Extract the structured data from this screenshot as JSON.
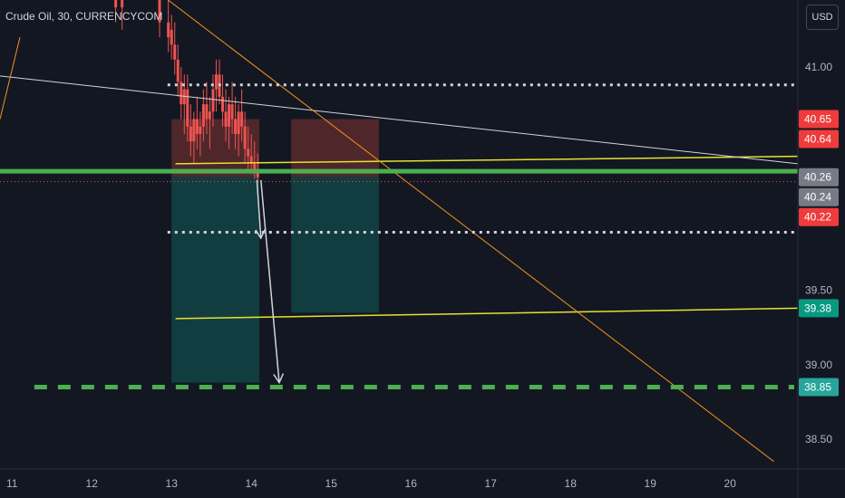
{
  "header": {
    "symbol_label": "Crude Oil, 30, CURRENCYCOM",
    "currency_button": "USD"
  },
  "colors": {
    "background": "#131722",
    "grid": "#1e222d",
    "up_candle": "#ef5350",
    "down_candle": "#ef5350",
    "yellow_line": "#e6e22e",
    "orange_line": "#f7931a",
    "white_line": "#d1d4dc",
    "green_support": "#4caf50",
    "red_price": "#ef5350",
    "risk_zone": "#5b2a2d",
    "reward_zone": "#134445",
    "tag_red": "#ef3b3b",
    "tag_gray": "#787b86",
    "tag_teal": "#089981",
    "tag_green": "#26a69a"
  },
  "chart_data": {
    "type": "candlestick",
    "title": "Crude Oil, 30, CURRENCYCOM",
    "x_ticks": [
      {
        "x": 11,
        "label": "11"
      },
      {
        "x": 12,
        "label": "12"
      },
      {
        "x": 13,
        "label": "13"
      },
      {
        "x": 14,
        "label": "14"
      },
      {
        "x": 15,
        "label": "15"
      },
      {
        "x": 16,
        "label": "16"
      },
      {
        "x": 17,
        "label": "17"
      },
      {
        "x": 18,
        "label": "18"
      },
      {
        "x": 19,
        "label": "19"
      },
      {
        "x": 20,
        "label": "20"
      }
    ],
    "y_ticks": [
      {
        "y": 41.0,
        "label": "41.00"
      },
      {
        "y": 39.5,
        "label": "39.50"
      },
      {
        "y": 39.0,
        "label": "39.00"
      },
      {
        "y": 38.5,
        "label": "38.50"
      }
    ],
    "xlim": [
      10.85,
      20.85
    ],
    "ylim": [
      38.3,
      41.45
    ],
    "grid": false,
    "candles": [
      {
        "x": 12.3,
        "o": 41.5,
        "h": 41.6,
        "l": 41.3,
        "c": 41.4
      },
      {
        "x": 12.38,
        "o": 41.4,
        "h": 41.55,
        "l": 41.25,
        "c": 41.45
      },
      {
        "x": 12.85,
        "o": 41.45,
        "h": 41.5,
        "l": 41.2,
        "c": 41.3
      },
      {
        "x": 12.96,
        "o": 41.3,
        "h": 41.45,
        "l": 41.1,
        "c": 41.2
      },
      {
        "x": 13.0,
        "o": 41.25,
        "h": 41.35,
        "l": 41.05,
        "c": 41.15
      },
      {
        "x": 13.04,
        "o": 41.15,
        "h": 41.3,
        "l": 40.95,
        "c": 41.05
      },
      {
        "x": 13.08,
        "o": 41.05,
        "h": 41.15,
        "l": 40.8,
        "c": 40.9
      },
      {
        "x": 13.12,
        "o": 40.9,
        "h": 41.0,
        "l": 40.65,
        "c": 40.75
      },
      {
        "x": 13.16,
        "o": 40.75,
        "h": 40.95,
        "l": 40.55,
        "c": 40.85
      },
      {
        "x": 13.2,
        "o": 40.85,
        "h": 40.95,
        "l": 40.5,
        "c": 40.6
      },
      {
        "x": 13.24,
        "o": 40.6,
        "h": 40.75,
        "l": 40.4,
        "c": 40.5
      },
      {
        "x": 13.28,
        "o": 40.5,
        "h": 40.7,
        "l": 40.35,
        "c": 40.65
      },
      {
        "x": 13.32,
        "o": 40.65,
        "h": 40.8,
        "l": 40.45,
        "c": 40.55
      },
      {
        "x": 13.36,
        "o": 40.55,
        "h": 40.7,
        "l": 40.4,
        "c": 40.6
      },
      {
        "x": 13.4,
        "o": 40.6,
        "h": 40.85,
        "l": 40.5,
        "c": 40.75
      },
      {
        "x": 13.44,
        "o": 40.75,
        "h": 40.9,
        "l": 40.55,
        "c": 40.65
      },
      {
        "x": 13.48,
        "o": 40.65,
        "h": 40.8,
        "l": 40.45,
        "c": 40.7
      },
      {
        "x": 13.52,
        "o": 40.7,
        "h": 40.95,
        "l": 40.6,
        "c": 40.85
      },
      {
        "x": 13.56,
        "o": 40.85,
        "h": 41.05,
        "l": 40.7,
        "c": 40.95
      },
      {
        "x": 13.6,
        "o": 40.95,
        "h": 41.05,
        "l": 40.75,
        "c": 40.8
      },
      {
        "x": 13.64,
        "o": 40.8,
        "h": 40.95,
        "l": 40.6,
        "c": 40.7
      },
      {
        "x": 13.68,
        "o": 40.7,
        "h": 40.85,
        "l": 40.5,
        "c": 40.6
      },
      {
        "x": 13.72,
        "o": 40.6,
        "h": 40.8,
        "l": 40.45,
        "c": 40.75
      },
      {
        "x": 13.76,
        "o": 40.75,
        "h": 40.9,
        "l": 40.55,
        "c": 40.65
      },
      {
        "x": 13.8,
        "o": 40.65,
        "h": 40.8,
        "l": 40.45,
        "c": 40.55
      },
      {
        "x": 13.84,
        "o": 40.55,
        "h": 40.75,
        "l": 40.4,
        "c": 40.7
      },
      {
        "x": 13.88,
        "o": 40.7,
        "h": 40.85,
        "l": 40.5,
        "c": 40.6
      },
      {
        "x": 13.92,
        "o": 40.6,
        "h": 40.7,
        "l": 40.35,
        "c": 40.45
      },
      {
        "x": 13.96,
        "o": 40.45,
        "h": 40.6,
        "l": 40.3,
        "c": 40.4
      },
      {
        "x": 14.0,
        "o": 40.4,
        "h": 40.55,
        "l": 40.28,
        "c": 40.35
      },
      {
        "x": 14.04,
        "o": 40.35,
        "h": 40.5,
        "l": 40.25,
        "c": 40.3
      },
      {
        "x": 14.08,
        "o": 40.3,
        "h": 40.42,
        "l": 40.22,
        "c": 40.26
      }
    ],
    "lines": [
      {
        "kind": "trend",
        "color": "yellow",
        "points": [
          [
            13.05,
            41.5
          ],
          [
            20.85,
            41.52
          ]
        ]
      },
      {
        "kind": "trend",
        "color": "yellow",
        "points": [
          [
            13.05,
            40.35
          ],
          [
            20.85,
            40.4
          ]
        ]
      },
      {
        "kind": "trend",
        "color": "yellow",
        "points": [
          [
            13.05,
            39.31
          ],
          [
            20.85,
            39.38
          ]
        ]
      },
      {
        "kind": "trend",
        "color": "white",
        "points": [
          [
            10.85,
            40.94
          ],
          [
            20.85,
            40.35
          ]
        ]
      },
      {
        "kind": "trend",
        "color": "orange",
        "points": [
          [
            12.1,
            41.8
          ],
          [
            20.55,
            38.35
          ]
        ]
      },
      {
        "kind": "trend",
        "color": "orange",
        "points": [
          [
            10.85,
            40.65
          ],
          [
            11.1,
            41.2
          ]
        ]
      },
      {
        "kind": "horizontal_dotted",
        "color": "white",
        "y": 40.88,
        "x_from": 12.95
      },
      {
        "kind": "horizontal_dotted",
        "color": "white",
        "y": 39.89,
        "x_from": 12.95
      },
      {
        "kind": "horizontal_solid_thick",
        "color": "green",
        "y": 40.3,
        "x_from": 10.85
      },
      {
        "kind": "horizontal_dashed",
        "color": "green",
        "y": 38.85,
        "x_from": 11.28
      },
      {
        "kind": "horizontal_dotted_thin",
        "color": "red",
        "y": 40.23,
        "x_from": 10.85
      }
    ],
    "positions": [
      {
        "side": "short",
        "x_from": 13.0,
        "x_to": 14.1,
        "entry": 40.26,
        "stop": 40.65,
        "target": 38.88
      },
      {
        "side": "short",
        "x_from": 14.5,
        "x_to": 15.6,
        "entry": 40.26,
        "stop": 40.65,
        "target": 39.35
      }
    ],
    "arrows": [
      {
        "from": [
          14.07,
          40.24
        ],
        "to": [
          14.12,
          39.85
        ]
      },
      {
        "from": [
          14.12,
          40.24
        ],
        "to": [
          14.35,
          38.88
        ]
      }
    ],
    "price_tags": [
      {
        "y": 40.65,
        "label": "40.65",
        "style": "red"
      },
      {
        "y": 40.64,
        "label": "40.64",
        "style": "red"
      },
      {
        "y": 40.26,
        "label": "40.26",
        "style": "gray"
      },
      {
        "y": 40.24,
        "label": "40.24",
        "style": "gray"
      },
      {
        "y": 40.22,
        "label": "40.22",
        "style": "red"
      },
      {
        "y": 39.38,
        "label": "39.38",
        "style": "teal"
      },
      {
        "y": 38.85,
        "label": "38.85",
        "style": "green"
      }
    ]
  }
}
